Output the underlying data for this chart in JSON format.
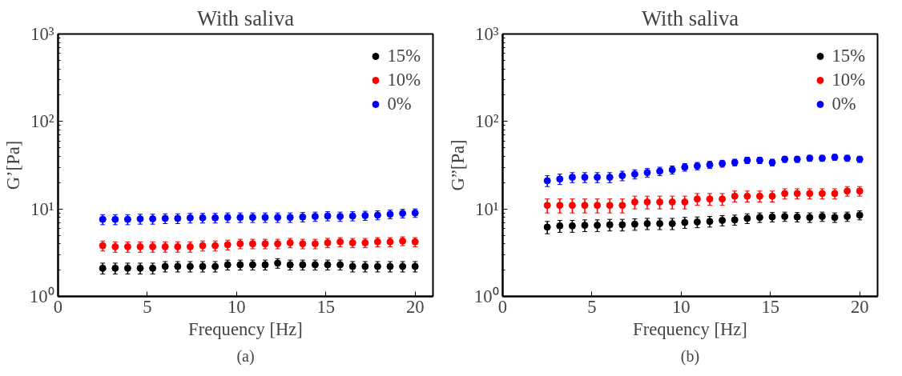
{
  "chart_data": [
    {
      "type": "scatter",
      "title": "With saliva",
      "xlabel": "Frequency [Hz]",
      "ylabel": "G’[Pa]",
      "annotations": [
        "(a)"
      ],
      "log": "y",
      "legend": "top right",
      "marker": "circle",
      "xlim": [
        0,
        21
      ],
      "ylim": [
        1,
        1000
      ],
      "xticks": [
        0,
        5,
        10,
        15,
        20
      ],
      "yticks": [
        {
          "value": 1,
          "label": "10⁰"
        },
        {
          "value": 10,
          "label": "10¹"
        },
        {
          "value": 100,
          "label": "10²"
        },
        {
          "value": 1000,
          "label": "10³"
        }
      ],
      "x": [
        2.5,
        3.2,
        3.9,
        4.6,
        5.3,
        6.0,
        6.7,
        7.4,
        8.1,
        8.8,
        9.5,
        10.2,
        10.9,
        11.6,
        12.3,
        13.0,
        13.7,
        14.4,
        15.1,
        15.8,
        16.5,
        17.2,
        17.9,
        18.6,
        19.3,
        20.0
      ],
      "series": [
        {
          "name": "15%",
          "color": "#000000",
          "values": [
            2.1,
            2.1,
            2.1,
            2.1,
            2.1,
            2.2,
            2.2,
            2.2,
            2.2,
            2.2,
            2.3,
            2.3,
            2.3,
            2.3,
            2.4,
            2.3,
            2.3,
            2.3,
            2.3,
            2.3,
            2.2,
            2.2,
            2.2,
            2.2,
            2.2,
            2.2
          ],
          "errors": [
            0.3,
            0.3,
            0.3,
            0.3,
            0.3,
            0.3,
            0.3,
            0.3,
            0.3,
            0.3,
            0.3,
            0.3,
            0.3,
            0.3,
            0.3,
            0.3,
            0.3,
            0.3,
            0.3,
            0.3,
            0.3,
            0.3,
            0.3,
            0.3,
            0.3,
            0.3
          ]
        },
        {
          "name": "10%",
          "color": "#ff0000",
          "values": [
            3.8,
            3.7,
            3.7,
            3.7,
            3.7,
            3.7,
            3.7,
            3.7,
            3.8,
            3.8,
            3.9,
            4.0,
            4.0,
            4.0,
            4.0,
            4.1,
            4.0,
            4.0,
            4.1,
            4.2,
            4.1,
            4.1,
            4.2,
            4.2,
            4.3,
            4.2
          ],
          "errors": [
            0.5,
            0.5,
            0.5,
            0.5,
            0.5,
            0.5,
            0.5,
            0.5,
            0.5,
            0.5,
            0.5,
            0.5,
            0.5,
            0.5,
            0.5,
            0.5,
            0.5,
            0.5,
            0.5,
            0.5,
            0.5,
            0.5,
            0.5,
            0.5,
            0.5,
            0.5
          ]
        },
        {
          "name": "0%",
          "color": "#0000ff",
          "values": [
            7.6,
            7.6,
            7.6,
            7.7,
            7.7,
            7.8,
            7.8,
            7.9,
            7.9,
            7.9,
            8.0,
            8.0,
            8.0,
            8.0,
            8.0,
            8.0,
            8.1,
            8.2,
            8.3,
            8.2,
            8.3,
            8.4,
            8.5,
            8.7,
            8.9,
            9.0
          ],
          "errors": [
            1,
            1,
            1,
            1,
            1,
            1,
            1,
            1,
            1,
            1,
            1,
            1,
            1,
            1,
            1,
            1,
            1,
            1,
            1,
            1,
            1,
            1,
            1,
            1,
            1,
            1
          ]
        }
      ]
    },
    {
      "type": "scatter",
      "title": "With saliva",
      "xlabel": "Frequency [Hz]",
      "ylabel": "G”[Pa]",
      "annotations": [
        "(b)"
      ],
      "log": "y",
      "legend": "top right",
      "marker": "circle",
      "xlim": [
        0,
        21
      ],
      "ylim": [
        1,
        1000
      ],
      "xticks": [
        0,
        5,
        10,
        15,
        20
      ],
      "yticks": [
        {
          "value": 1,
          "label": "10⁰"
        },
        {
          "value": 10,
          "label": "10¹"
        },
        {
          "value": 100,
          "label": "10²"
        },
        {
          "value": 1000,
          "label": "10³"
        }
      ],
      "x": [
        2.5,
        3.2,
        3.9,
        4.6,
        5.3,
        6.0,
        6.7,
        7.4,
        8.1,
        8.8,
        9.5,
        10.2,
        10.9,
        11.6,
        12.3,
        13.0,
        13.7,
        14.4,
        15.1,
        15.8,
        16.5,
        17.2,
        17.9,
        18.6,
        19.3,
        20.0
      ],
      "series": [
        {
          "name": "15%",
          "color": "#000000",
          "values": [
            6.2,
            6.4,
            6.4,
            6.5,
            6.5,
            6.6,
            6.6,
            6.7,
            6.8,
            6.8,
            6.8,
            7.0,
            7.1,
            7.2,
            7.4,
            7.5,
            7.8,
            8.0,
            8.1,
            8.2,
            8.1,
            8.0,
            8.2,
            8.0,
            8.2,
            8.5
          ],
          "errors": [
            1,
            1,
            1,
            1,
            1,
            1,
            1,
            1,
            1,
            1,
            1,
            1,
            1,
            1,
            1,
            1,
            1,
            1,
            1,
            1,
            1,
            1,
            1,
            1,
            1,
            1
          ]
        },
        {
          "name": "10%",
          "color": "#ff0000",
          "values": [
            11,
            11,
            11,
            11,
            11,
            11,
            11,
            12,
            12,
            12,
            12,
            12,
            13,
            13,
            13,
            14,
            14,
            14,
            14,
            15,
            15,
            15,
            15,
            15,
            16,
            16
          ],
          "errors": [
            2,
            2,
            2,
            2,
            2,
            2,
            2,
            2,
            2,
            2,
            2,
            2,
            2,
            2,
            2,
            2,
            2,
            2,
            2,
            2,
            2,
            2,
            2,
            2,
            2,
            2
          ]
        },
        {
          "name": "0%",
          "color": "#0000ff",
          "values": [
            21,
            22,
            23,
            23,
            23,
            23,
            24,
            25,
            26,
            27,
            28,
            30,
            31,
            32,
            33,
            34,
            36,
            36,
            34,
            37,
            37,
            38,
            38,
            39,
            38,
            37
          ],
          "errors": [
            3,
            3,
            3,
            3,
            3,
            3,
            3,
            3,
            3,
            3,
            3,
            3,
            3,
            3,
            3,
            3,
            3,
            3,
            3,
            3,
            3,
            3,
            3,
            3,
            3,
            3
          ]
        }
      ]
    }
  ]
}
